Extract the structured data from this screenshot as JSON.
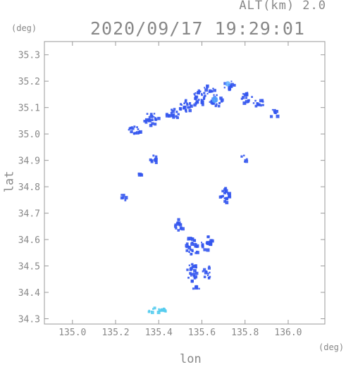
{
  "header": {
    "altitude_label": "ALT(km) 2.0",
    "timestamp": "2020/09/17 19:29:01"
  },
  "chart_data": {
    "type": "heatmap",
    "title": "2020/09/17 19:29:01",
    "xlabel": "lon",
    "ylabel": "lat",
    "x_unit": "(deg)",
    "y_unit": "(deg)",
    "xlim": [
      134.87,
      136.17
    ],
    "ylim": [
      34.28,
      35.35
    ],
    "x_ticks": [
      "135.0",
      "135.2",
      "135.4",
      "135.6",
      "135.8",
      "136.0"
    ],
    "y_ticks": [
      "34.3",
      "34.4",
      "34.5",
      "34.6",
      "34.7",
      "34.8",
      "34.9",
      "35.0",
      "35.1",
      "35.2",
      "35.3"
    ],
    "grid": false,
    "colors": {
      "axis": "#999999",
      "echo_strong": "#3355ee",
      "echo_weak": "#55ccee",
      "echo_peak": "#55aaff"
    },
    "clusters": [
      {
        "lon": 135.28,
        "lat": 35.02,
        "w": 0.06,
        "h": 0.04,
        "intensity": "strong"
      },
      {
        "lon": 135.36,
        "lat": 35.06,
        "w": 0.07,
        "h": 0.05,
        "intensity": "strong"
      },
      {
        "lon": 135.46,
        "lat": 35.08,
        "w": 0.06,
        "h": 0.04,
        "intensity": "strong"
      },
      {
        "lon": 135.52,
        "lat": 35.11,
        "w": 0.06,
        "h": 0.05,
        "intensity": "strong"
      },
      {
        "lon": 135.58,
        "lat": 35.14,
        "w": 0.07,
        "h": 0.06,
        "intensity": "strong"
      },
      {
        "lon": 135.63,
        "lat": 35.17,
        "w": 0.05,
        "h": 0.04,
        "intensity": "strong"
      },
      {
        "lon": 135.66,
        "lat": 35.13,
        "w": 0.06,
        "h": 0.05,
        "intensity": "peak"
      },
      {
        "lon": 135.72,
        "lat": 35.19,
        "w": 0.05,
        "h": 0.04,
        "intensity": "peak"
      },
      {
        "lon": 135.8,
        "lat": 35.14,
        "w": 0.06,
        "h": 0.04,
        "intensity": "strong"
      },
      {
        "lon": 135.86,
        "lat": 35.12,
        "w": 0.06,
        "h": 0.03,
        "intensity": "strong"
      },
      {
        "lon": 135.93,
        "lat": 35.08,
        "w": 0.04,
        "h": 0.03,
        "intensity": "strong"
      },
      {
        "lon": 135.37,
        "lat": 34.91,
        "w": 0.04,
        "h": 0.04,
        "intensity": "strong"
      },
      {
        "lon": 135.31,
        "lat": 34.85,
        "w": 0.02,
        "h": 0.02,
        "intensity": "strong"
      },
      {
        "lon": 135.23,
        "lat": 34.76,
        "w": 0.03,
        "h": 0.03,
        "intensity": "strong"
      },
      {
        "lon": 135.49,
        "lat": 34.66,
        "w": 0.04,
        "h": 0.05,
        "intensity": "strong"
      },
      {
        "lon": 135.55,
        "lat": 34.58,
        "w": 0.06,
        "h": 0.08,
        "intensity": "strong"
      },
      {
        "lon": 135.62,
        "lat": 34.59,
        "w": 0.05,
        "h": 0.06,
        "intensity": "strong"
      },
      {
        "lon": 135.55,
        "lat": 34.48,
        "w": 0.05,
        "h": 0.07,
        "intensity": "strong"
      },
      {
        "lon": 135.62,
        "lat": 34.48,
        "w": 0.04,
        "h": 0.05,
        "intensity": "strong"
      },
      {
        "lon": 135.57,
        "lat": 34.42,
        "w": 0.03,
        "h": 0.02,
        "intensity": "strong"
      },
      {
        "lon": 135.7,
        "lat": 34.77,
        "w": 0.05,
        "h": 0.06,
        "intensity": "strong"
      },
      {
        "lon": 135.79,
        "lat": 34.91,
        "w": 0.03,
        "h": 0.03,
        "intensity": "strong"
      },
      {
        "lon": 135.4,
        "lat": 34.34,
        "w": 0.1,
        "h": 0.02,
        "intensity": "weak"
      },
      {
        "lon": 135.35,
        "lat": 34.33,
        "w": 0.03,
        "h": 0.01,
        "intensity": "weak"
      }
    ]
  }
}
